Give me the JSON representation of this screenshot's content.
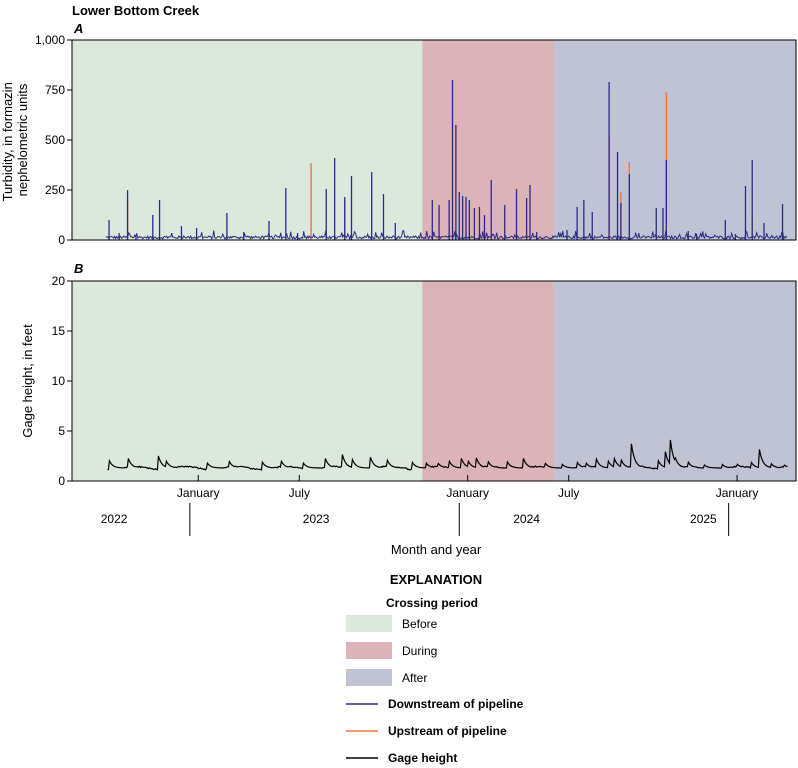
{
  "figure_title": "Lower Bottom Creek",
  "colors": {
    "before": "#dde8dd",
    "during": "#dcb3b8",
    "after": "#bfc3d3",
    "downstream": "#2b2c86",
    "upstream": "#f0763f",
    "gage": "#000000"
  },
  "chart_data": [
    {
      "type": "line",
      "panel": "A",
      "ylabel_lines": [
        "Turbidity, in formazin",
        "nephelometric units"
      ],
      "ylim": [
        0,
        1000
      ],
      "yticks": [
        0,
        250,
        500,
        750,
        1000
      ],
      "ytick_labels": [
        "0",
        "250",
        "500",
        "750",
        "1,000"
      ],
      "xlim_months": [
        0,
        43
      ],
      "crossing_periods": [
        {
          "name": "Before",
          "start": 0,
          "end": 20.8
        },
        {
          "name": "During",
          "start": 20.8,
          "end": 28.6
        },
        {
          "name": "After",
          "start": 28.6,
          "end": 43
        }
      ],
      "baseline": 12,
      "downstream_spikes": [
        [
          2.2,
          100
        ],
        [
          2.8,
          35
        ],
        [
          3.3,
          250
        ],
        [
          3.8,
          20
        ],
        [
          4.8,
          125
        ],
        [
          5.2,
          200
        ],
        [
          6.5,
          70
        ],
        [
          7.4,
          60
        ],
        [
          9.2,
          135
        ],
        [
          10.2,
          40
        ],
        [
          11.7,
          95
        ],
        [
          12.7,
          260
        ],
        [
          13.4,
          35
        ],
        [
          15.1,
          255
        ],
        [
          15.6,
          410
        ],
        [
          16.2,
          215
        ],
        [
          16.6,
          320
        ],
        [
          17.8,
          340
        ],
        [
          18.5,
          230
        ],
        [
          19.2,
          85
        ],
        [
          21.4,
          200
        ],
        [
          21.8,
          175
        ],
        [
          22.4,
          200
        ],
        [
          22.6,
          800
        ],
        [
          22.8,
          575
        ],
        [
          23.0,
          240
        ],
        [
          23.2,
          220
        ],
        [
          23.4,
          215
        ],
        [
          23.6,
          200
        ],
        [
          23.9,
          160
        ],
        [
          24.2,
          165
        ],
        [
          24.5,
          125
        ],
        [
          24.9,
          300
        ],
        [
          25.7,
          175
        ],
        [
          26.4,
          255
        ],
        [
          27.0,
          210
        ],
        [
          27.2,
          275
        ],
        [
          27.6,
          40
        ],
        [
          29.4,
          50
        ],
        [
          30.0,
          165
        ],
        [
          30.4,
          200
        ],
        [
          30.9,
          140
        ],
        [
          31.9,
          790
        ],
        [
          32.4,
          440
        ],
        [
          32.6,
          185
        ],
        [
          33.1,
          330
        ],
        [
          34.7,
          160
        ],
        [
          35.1,
          160
        ],
        [
          35.3,
          400
        ],
        [
          36.6,
          45
        ],
        [
          37.1,
          30
        ],
        [
          38.8,
          100
        ],
        [
          39.4,
          30
        ],
        [
          40.0,
          270
        ],
        [
          40.4,
          400
        ],
        [
          41.1,
          85
        ],
        [
          42.2,
          180
        ]
      ],
      "upstream_spikes": [
        [
          3.3,
          210
        ],
        [
          14.2,
          385
        ],
        [
          16.2,
          200
        ],
        [
          31.9,
          520
        ],
        [
          32.6,
          240
        ],
        [
          33.1,
          390
        ],
        [
          35.3,
          740
        ],
        [
          40.4,
          110
        ]
      ],
      "end_month": 43
    },
    {
      "type": "line",
      "panel": "B",
      "ylabel": "Gage height, in feet",
      "ylim": [
        0,
        20
      ],
      "yticks": [
        0,
        5,
        10,
        15,
        20
      ],
      "ytick_labels": [
        "0",
        "5",
        "10",
        "15",
        "20"
      ],
      "xlim_months": [
        0,
        43
      ],
      "series_name": "Gage height",
      "start_month": 2.1,
      "end_month": 43,
      "base_level": 1.3,
      "events": [
        [
          2.2,
          2.1
        ],
        [
          3.3,
          2.5
        ],
        [
          5.1,
          2.7
        ],
        [
          5.6,
          2.0
        ],
        [
          8.0,
          1.9
        ],
        [
          9.3,
          2.1
        ],
        [
          11.3,
          1.9
        ],
        [
          12.4,
          2.1
        ],
        [
          13.7,
          1.9
        ],
        [
          15.0,
          2.5
        ],
        [
          16.0,
          3.1
        ],
        [
          16.6,
          2.4
        ],
        [
          17.7,
          2.5
        ],
        [
          18.7,
          2.2
        ],
        [
          20.2,
          1.9
        ],
        [
          21.0,
          1.9
        ],
        [
          21.7,
          1.9
        ],
        [
          22.4,
          2.0
        ],
        [
          23.1,
          2.4
        ],
        [
          23.5,
          2.1
        ],
        [
          24.0,
          2.4
        ],
        [
          24.7,
          2.0
        ],
        [
          25.8,
          2.1
        ],
        [
          26.8,
          2.3
        ],
        [
          28.1,
          1.8
        ],
        [
          29.1,
          1.7
        ],
        [
          30.0,
          1.9
        ],
        [
          30.5,
          1.9
        ],
        [
          31.1,
          2.4
        ],
        [
          31.8,
          2.2
        ],
        [
          32.2,
          2.3
        ],
        [
          32.6,
          2.2
        ],
        [
          33.2,
          4.0
        ],
        [
          34.8,
          2.1
        ],
        [
          35.2,
          3.3
        ],
        [
          35.5,
          4.7
        ],
        [
          35.8,
          2.5
        ],
        [
          36.6,
          1.9
        ],
        [
          37.5,
          1.7
        ],
        [
          38.6,
          1.7
        ],
        [
          39.5,
          1.7
        ],
        [
          40.3,
          2.0
        ],
        [
          40.8,
          3.4
        ],
        [
          41.5,
          1.8
        ],
        [
          42.3,
          1.6
        ]
      ],
      "month_labels": [
        {
          "label": "January",
          "month": 7.5
        },
        {
          "label": "July",
          "month": 13.5
        },
        {
          "label": "January",
          "month": 23.5
        },
        {
          "label": "July",
          "month": 29.5
        },
        {
          "label": "January",
          "month": 39.5
        }
      ],
      "year_labels": [
        {
          "label": "2022",
          "month": 2.5
        },
        {
          "label": "2023",
          "month": 14.5
        },
        {
          "label": "2024",
          "month": 27
        },
        {
          "label": "2025",
          "month": 37.5
        }
      ],
      "year_dividers_months": [
        7.0,
        23.0,
        39.0
      ],
      "xlabel": "Month and year"
    }
  ],
  "legend": {
    "title": "EXPLANATION",
    "group_title": "Crossing period",
    "patches": [
      "Before",
      "During",
      "After"
    ],
    "lines": [
      "Downstream of pipeline",
      "Upstream of pipeline",
      "Gage height"
    ]
  }
}
